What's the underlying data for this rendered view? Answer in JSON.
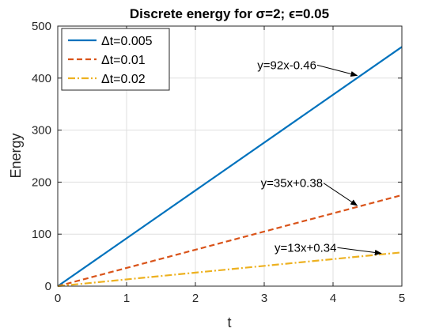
{
  "chart_data": {
    "type": "line",
    "title": "Discrete energy for σ=2; ϵ=0.05",
    "xlabel": "t",
    "ylabel": "Energy",
    "xlim": [
      0,
      5
    ],
    "ylim": [
      0,
      500
    ],
    "xticks": [
      "0",
      "1",
      "2",
      "3",
      "4",
      "5"
    ],
    "yticks": [
      "0",
      "100",
      "200",
      "300",
      "400",
      "500"
    ],
    "grid": true,
    "legend_position": "top-left",
    "series": [
      {
        "name": "Δt=0.005",
        "color": "#0072BD",
        "style": "solid",
        "x": [
          0,
          5
        ],
        "y": [
          0,
          460
        ]
      },
      {
        "name": "Δt=0.01",
        "color": "#D95319",
        "style": "dashed",
        "x": [
          0,
          5
        ],
        "y": [
          0,
          175
        ]
      },
      {
        "name": "Δt=0.02",
        "color": "#EDB120",
        "style": "dashdot",
        "x": [
          0,
          5
        ],
        "y": [
          0,
          65
        ]
      }
    ],
    "annotations": [
      {
        "text": "y=92x-0.46",
        "text_x": 2.9,
        "text_y": 425,
        "arrow_x": 4.35,
        "arrow_y": 405
      },
      {
        "text": "y=35x+0.38",
        "text_x": 2.95,
        "text_y": 198,
        "arrow_x": 4.35,
        "arrow_y": 155
      },
      {
        "text": "y=13x+0.34",
        "text_x": 3.15,
        "text_y": 74,
        "arrow_x": 4.7,
        "arrow_y": 63
      }
    ]
  }
}
